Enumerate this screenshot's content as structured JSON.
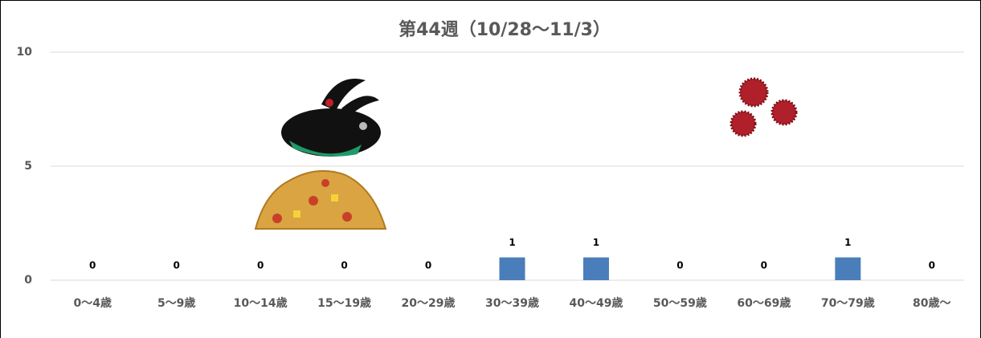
{
  "chart_data": {
    "type": "bar",
    "title": "第44週（10/28～11/3）",
    "categories": [
      "0～4歳",
      "5～9歳",
      "10～14歳",
      "15～19歳",
      "20～29歳",
      "30～39歳",
      "40～49歳",
      "50～59歳",
      "60～69歳",
      "70～79歳",
      "80歳～"
    ],
    "values": [
      0,
      0,
      0,
      0,
      0,
      1,
      1,
      0,
      0,
      1,
      0
    ],
    "color": "#4a7ebb",
    "ylim": [
      0,
      10
    ],
    "yticks": [
      0,
      5,
      10
    ],
    "grid": true
  }
}
